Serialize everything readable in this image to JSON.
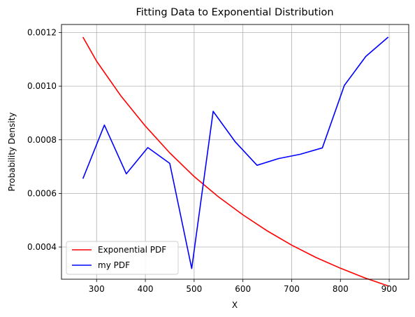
{
  "chart_data": {
    "type": "line",
    "title": "Fitting Data to Exponential Distribution",
    "xlabel": "X",
    "ylabel": "Probability Density",
    "xlim": [
      228,
      940
    ],
    "ylim": [
      0.00028,
      0.00123
    ],
    "xticks": [
      300,
      400,
      500,
      600,
      700,
      800,
      900
    ],
    "xtick_labels": [
      "300",
      "400",
      "500",
      "600",
      "700",
      "800",
      "900"
    ],
    "yticks": [
      0.0004,
      0.0006,
      0.0008,
      0.001,
      0.0012
    ],
    "ytick_labels": [
      "0.0004",
      "0.0006",
      "0.0008",
      "0.0010",
      "0.0012"
    ],
    "grid": true,
    "legend": "lower-left",
    "series": [
      {
        "name": "Exponential PDF",
        "color": "#ff0000",
        "x": [
          272,
          300,
          350,
          400,
          450,
          500,
          550,
          600,
          650,
          700,
          750,
          800,
          850,
          898
        ],
        "y": [
          0.001183,
          0.001093,
          0.000963,
          0.000851,
          0.000751,
          0.000663,
          0.000587,
          0.00052,
          0.00046,
          0.000407,
          0.000361,
          0.000321,
          0.000285,
          0.000255
        ]
      },
      {
        "name": "my PDF",
        "color": "#0000ff",
        "x": [
          272,
          316,
          361,
          405,
          450,
          495,
          539,
          584,
          629,
          673,
          718,
          763,
          808,
          852,
          898
        ],
        "y": [
          0.000655,
          0.000855,
          0.000673,
          0.000771,
          0.000712,
          0.00032,
          0.000906,
          0.000793,
          0.000705,
          0.00073,
          0.000746,
          0.00077,
          0.001003,
          0.001111,
          0.001183
        ]
      }
    ]
  }
}
